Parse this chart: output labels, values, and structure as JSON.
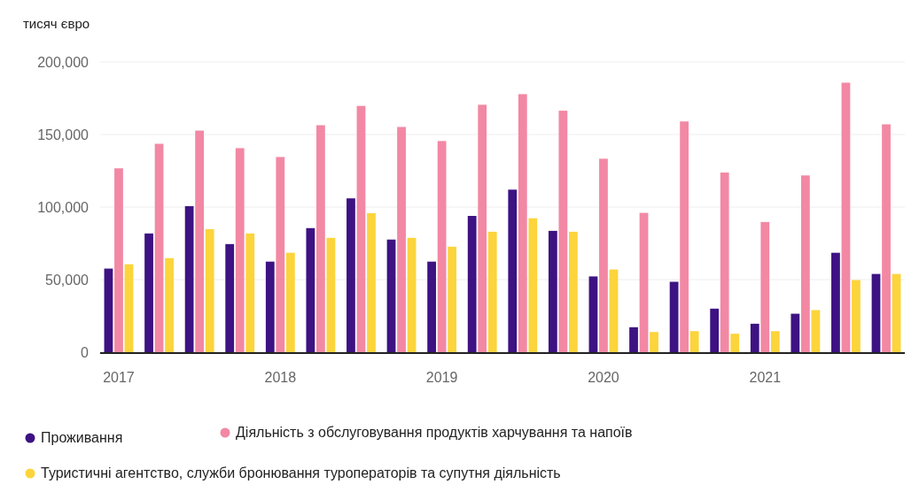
{
  "chart_data": {
    "type": "bar",
    "ylabel": "тисяч євро",
    "categories": [
      "2017",
      null,
      null,
      null,
      "2018",
      null,
      null,
      null,
      "2019",
      null,
      null,
      null,
      "2020",
      null,
      null,
      null,
      "2021",
      null,
      null,
      null
    ],
    "series": [
      {
        "name": "Проживання",
        "color": "#3d1282",
        "values": [
          57600,
          81800,
          100600,
          74500,
          62400,
          85500,
          106000,
          77600,
          62400,
          93900,
          112000,
          83600,
          52200,
          17200,
          48500,
          30000,
          19600,
          26500,
          68500,
          53900
        ]
      },
      {
        "name": "Діяльність з обслуговування продуктів харчування та напоїв",
        "color": "#f288a4",
        "values": [
          126700,
          143600,
          152700,
          140600,
          134500,
          156400,
          169700,
          155200,
          145500,
          170500,
          177800,
          166400,
          133300,
          96000,
          159000,
          123800,
          89700,
          121800,
          185700,
          157000
        ]
      },
      {
        "name": "Туристичні агентство, служби бронювання туроператорів та супутня діяльність",
        "color": "#fcd43c",
        "values": [
          60600,
          64800,
          84800,
          81800,
          68500,
          78800,
          95800,
          78800,
          72700,
          83000,
          92300,
          83000,
          57000,
          13900,
          14500,
          12700,
          14500,
          29000,
          49700,
          53900
        ]
      }
    ],
    "ylim": [
      0,
      200000
    ],
    "yticks": [
      {
        "value": 0,
        "label": "0"
      },
      {
        "value": 50000,
        "label": "50,000"
      },
      {
        "value": 100000,
        "label": "100,000"
      },
      {
        "value": 150000,
        "label": "150,000"
      },
      {
        "value": 200000,
        "label": "200,000"
      }
    ],
    "grid": "y",
    "legend": "bottom"
  }
}
